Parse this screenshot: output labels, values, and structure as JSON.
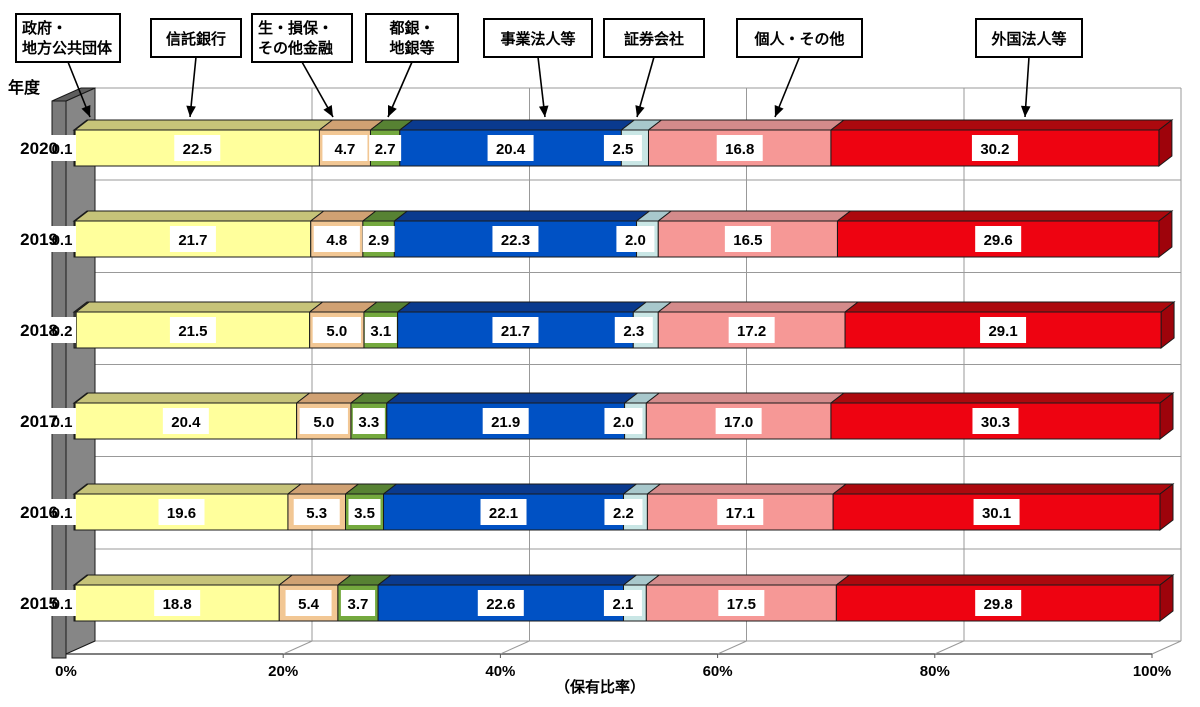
{
  "chart_data": {
    "type": "bar",
    "subtype": "horizontal-stacked-3d",
    "x_axis": {
      "unit_label": "（保有比率）",
      "ticks": [
        "0%",
        "20%",
        "40%",
        "60%",
        "80%",
        "100%"
      ],
      "range": [
        0,
        100
      ],
      "grid": true
    },
    "y_axis": {
      "title": "年度",
      "categories": [
        "2020",
        "2019",
        "2018",
        "2017",
        "2016",
        "2015"
      ]
    },
    "series": [
      {
        "key": "government",
        "name": "政府・地方公共団体",
        "color": "#4d4d4d",
        "color_top": "#3a3a3a",
        "values": [
          0.1,
          0.1,
          0.2,
          0.1,
          0.1,
          0.1
        ]
      },
      {
        "key": "trust-banks",
        "name": "信託銀行",
        "color": "#ffff9c",
        "color_top": "#c6c379",
        "values": [
          22.5,
          21.7,
          21.5,
          20.4,
          19.6,
          18.8
        ]
      },
      {
        "key": "insurance-other",
        "name": "生・損保・その他金融",
        "color": "#f2c794",
        "color_top": "#d0a173",
        "values": [
          4.7,
          4.8,
          5.0,
          5.0,
          5.3,
          5.4
        ]
      },
      {
        "key": "city-region-banks",
        "name": "都銀・地銀等",
        "color": "#74a93e",
        "color_top": "#578233",
        "values": [
          2.7,
          2.9,
          3.1,
          3.3,
          3.5,
          3.7
        ]
      },
      {
        "key": "business-corps",
        "name": "事業法人等",
        "color": "#0051c4",
        "color_top": "#0a3a8e",
        "values": [
          20.4,
          22.3,
          21.7,
          21.9,
          22.1,
          22.6
        ]
      },
      {
        "key": "securities-firms",
        "name": "証券会社",
        "color": "#c9e6e5",
        "color_top": "#a8c8cc",
        "values": [
          2.5,
          2.0,
          2.3,
          2.0,
          2.2,
          2.1
        ]
      },
      {
        "key": "individuals-other",
        "name": "個人・その他",
        "color": "#f69896",
        "color_top": "#d48b8b",
        "values": [
          16.8,
          16.5,
          17.2,
          17.0,
          17.1,
          17.5
        ]
      },
      {
        "key": "foreign",
        "name": "外国法人等",
        "color": "#ee0311",
        "color_top": "#ac090e",
        "color_side": "#9e030b",
        "values": [
          30.2,
          29.6,
          29.1,
          30.3,
          30.1,
          29.8
        ]
      }
    ],
    "legend_callouts": [
      {
        "key": "government",
        "lines": [
          "政府・",
          "地方公共団体"
        ]
      },
      {
        "key": "trust-banks",
        "lines": [
          "信託銀行"
        ]
      },
      {
        "key": "insurance-other",
        "lines": [
          "生・損保・",
          "その他金融"
        ]
      },
      {
        "key": "city-region-banks",
        "lines": [
          "都銀・",
          "地銀等"
        ]
      },
      {
        "key": "business-corps",
        "lines": [
          "事業法人等"
        ]
      },
      {
        "key": "securities-firms",
        "lines": [
          "証券会社"
        ]
      },
      {
        "key": "individuals-other",
        "lines": [
          "個人・その他"
        ]
      },
      {
        "key": "foreign",
        "lines": [
          "外国法人等"
        ]
      }
    ],
    "value_labels_shown": true,
    "colors": {
      "wall": "#868686",
      "grid": "#999999",
      "axis": "#555555",
      "outline": "#1a1a1a"
    }
  }
}
